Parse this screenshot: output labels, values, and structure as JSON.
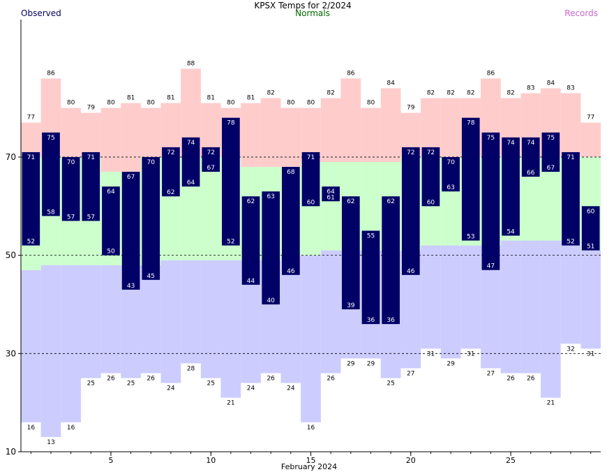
{
  "chart_data": {
    "type": "bar",
    "title": "KPSX Temps for 2/2024",
    "xlabel": "February 2024",
    "ylabel": "",
    "ylim": [
      10,
      98
    ],
    "xlim": [
      0.5,
      29.5
    ],
    "legend": {
      "observed": "Observed",
      "normals": "Normals",
      "records": "Records",
      "placement": "top"
    },
    "y_ticks": [
      10,
      30,
      50,
      70
    ],
    "x_ticks": [
      5,
      10,
      15,
      20,
      25
    ],
    "gridlines_dashed": [
      30,
      50,
      70
    ],
    "colors": {
      "observed": "#000066",
      "observed_label": "#ffffff",
      "normals": "#ccffcc",
      "records_high": "#ffcccc",
      "records_low": "#ccccff",
      "legend_observed": "#000066",
      "legend_normals": "#006600",
      "legend_records": "#cc66cc"
    },
    "days": [
      1,
      2,
      3,
      4,
      5,
      6,
      7,
      8,
      9,
      10,
      11,
      12,
      13,
      14,
      15,
      16,
      17,
      18,
      19,
      20,
      21,
      22,
      23,
      24,
      25,
      26,
      27,
      28,
      29
    ],
    "observed_high": [
      71,
      75,
      70,
      71,
      64,
      67,
      70,
      72,
      74,
      72,
      78,
      62,
      63,
      68,
      71,
      64,
      62,
      55,
      62,
      72,
      72,
      70,
      78,
      75,
      74,
      74,
      75,
      71,
      60
    ],
    "observed_low": [
      52,
      58,
      57,
      57,
      50,
      43,
      45,
      62,
      64,
      67,
      52,
      44,
      40,
      46,
      60,
      61,
      39,
      36,
      36,
      46,
      60,
      63,
      53,
      47,
      54,
      66,
      67,
      52,
      51
    ],
    "normal_high": [
      70,
      70,
      70,
      70,
      67,
      67,
      70,
      70,
      70,
      70,
      70,
      68,
      68,
      68,
      69,
      69,
      69,
      69,
      69,
      70,
      70,
      70,
      70,
      70,
      70,
      70,
      70,
      70,
      70
    ],
    "normal_low": [
      47,
      48,
      48,
      48,
      48,
      48,
      48,
      49,
      49,
      49,
      49,
      49,
      49,
      50,
      50,
      51,
      51,
      51,
      51,
      51,
      52,
      52,
      52,
      52,
      53,
      53,
      53,
      53,
      51
    ],
    "record_high": [
      77,
      86,
      80,
      79,
      80,
      81,
      80,
      81,
      88,
      81,
      80,
      81,
      82,
      80,
      80,
      82,
      86,
      80,
      84,
      79,
      82,
      82,
      82,
      86,
      82,
      83,
      84,
      83,
      77
    ],
    "record_low": [
      16,
      13,
      16,
      25,
      26,
      25,
      26,
      24,
      28,
      25,
      21,
      24,
      26,
      24,
      16,
      26,
      29,
      29,
      25,
      27,
      31,
      29,
      31,
      27,
      26,
      26,
      21,
      32,
      31
    ]
  }
}
